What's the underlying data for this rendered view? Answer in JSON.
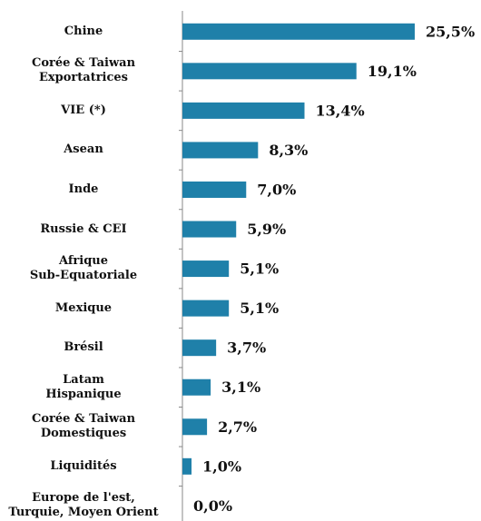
{
  "chart_data": {
    "type": "barh",
    "categories": [
      "Chine",
      "Corée & Taiwan\nExportatrices",
      "VIE (*)",
      "Asean",
      "Inde",
      "Russie & CEI",
      "Afrique\nSub-Equatoriale",
      "Mexique",
      "Brésil",
      "Latam\nHispanique",
      "Corée & Taiwan\nDomestiques",
      "Liquidités",
      "Europe de l'est,\nTurquie, Moyen Orient"
    ],
    "values": [
      25.5,
      19.1,
      13.4,
      8.3,
      7.0,
      5.9,
      5.1,
      5.1,
      3.7,
      3.1,
      2.7,
      1.0,
      0.0
    ],
    "value_labels": [
      "25,5%",
      "19,1%",
      "13,4%",
      "8,3%",
      "7,0%",
      "5,9%",
      "5,1%",
      "5,1%",
      "3,7%",
      "3,1%",
      "2,7%",
      "1,0%",
      "0,0%"
    ],
    "color": "#1f80a9",
    "xlim": [
      0,
      26
    ]
  }
}
